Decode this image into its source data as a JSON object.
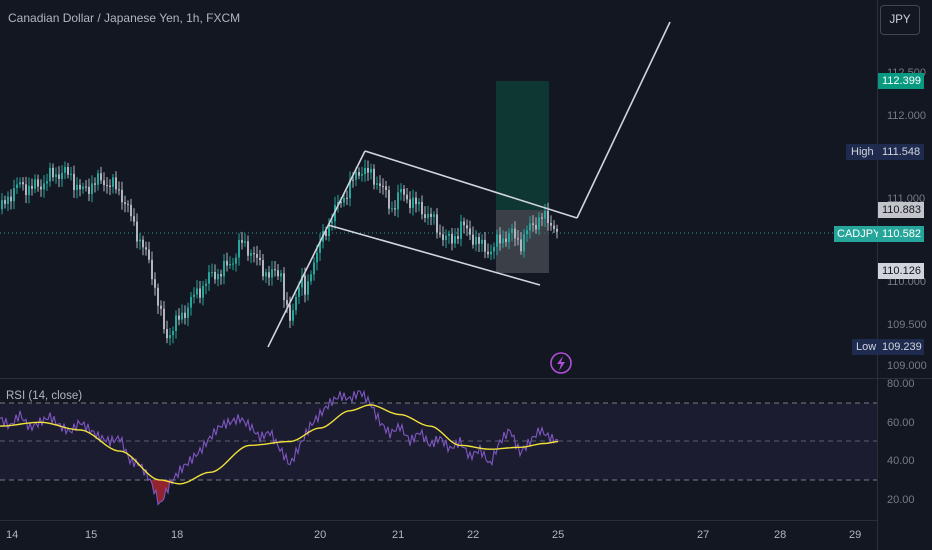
{
  "header": {
    "title": "Canadian Dollar / Japanese Yen, 1h, FXCM",
    "currency_button": "JPY"
  },
  "price_scale": {
    "ticks": [
      "112.500",
      "112.000",
      "111.000",
      "110.000",
      "109.500",
      "109.000"
    ],
    "badges": {
      "target_price": "112.399",
      "high_label": "High",
      "high_value": "111.548",
      "entry_price": "110.883",
      "symbol": "CADJPY",
      "last_price": "110.582",
      "stop_price": "110.126",
      "low_label": "Low",
      "low_value": "109.239"
    }
  },
  "rsi_panel": {
    "title": "RSI (14, close)",
    "ticks": [
      "80.00",
      "60.00",
      "40.00",
      "20.00"
    ]
  },
  "time_axis": {
    "labels": [
      "14",
      "15",
      "18",
      "20",
      "21",
      "22",
      "25",
      "27",
      "28",
      "29"
    ]
  },
  "colors": {
    "background": "#131722",
    "up_candle": "#26a69a",
    "down_candle": "#b2b5be",
    "rsi_line": "#7e57c2",
    "rsi_ma": "#f0e13b",
    "target_badge": "#089981",
    "last_badge": "#26a69a",
    "extreme_badge": "#1e2b4f"
  },
  "chart_data": {
    "type": "candlestick",
    "title": "Canadian Dollar / Japanese Yen, 1h, FXCM",
    "price_range": [
      108.9,
      112.75
    ],
    "x_labels": [
      "14",
      "15",
      "18",
      "20",
      "21",
      "22",
      "25",
      "27",
      "28",
      "29"
    ],
    "close_path": [
      [
        0,
        110.9
      ],
      [
        10,
        111.1
      ],
      [
        20,
        111.2
      ],
      [
        30,
        111.15
      ],
      [
        40,
        111.2
      ],
      [
        50,
        111.3
      ],
      [
        60,
        111.35
      ],
      [
        70,
        111.3
      ],
      [
        80,
        111.1
      ],
      [
        90,
        111.2
      ],
      [
        100,
        111.25
      ],
      [
        110,
        111.2
      ],
      [
        120,
        111.1
      ],
      [
        130,
        110.8
      ],
      [
        140,
        110.5
      ],
      [
        150,
        110.2
      ],
      [
        155,
        109.9
      ],
      [
        160,
        109.6
      ],
      [
        165,
        109.35
      ],
      [
        170,
        109.45
      ],
      [
        180,
        109.6
      ],
      [
        190,
        109.8
      ],
      [
        200,
        109.95
      ],
      [
        210,
        110.1
      ],
      [
        220,
        110.15
      ],
      [
        230,
        110.25
      ],
      [
        240,
        110.5
      ],
      [
        250,
        110.4
      ],
      [
        260,
        110.2
      ],
      [
        270,
        110.1
      ],
      [
        280,
        110.15
      ],
      [
        285,
        109.7
      ],
      [
        290,
        109.5
      ],
      [
        295,
        109.9
      ],
      [
        300,
        110.1
      ],
      [
        305,
        109.8
      ],
      [
        310,
        110.2
      ],
      [
        320,
        110.5
      ],
      [
        330,
        110.8
      ],
      [
        340,
        111.0
      ],
      [
        350,
        111.2
      ],
      [
        360,
        111.4
      ],
      [
        370,
        111.3
      ],
      [
        380,
        111.2
      ],
      [
        390,
        110.9
      ],
      [
        400,
        111.1
      ],
      [
        410,
        111.0
      ],
      [
        420,
        110.9
      ],
      [
        430,
        110.8
      ],
      [
        440,
        110.6
      ],
      [
        450,
        110.5
      ],
      [
        460,
        110.7
      ],
      [
        470,
        110.6
      ],
      [
        480,
        110.45
      ],
      [
        490,
        110.4
      ],
      [
        500,
        110.55
      ],
      [
        510,
        110.6
      ],
      [
        520,
        110.5
      ],
      [
        530,
        110.7
      ],
      [
        540,
        110.8
      ],
      [
        550,
        110.75
      ],
      [
        558,
        110.6
      ]
    ],
    "annotations": {
      "rising_trendline": [
        [
          268,
          109.08
        ],
        [
          365,
          111.48
        ]
      ],
      "channel_upper": [
        [
          365,
          111.48
        ],
        [
          577,
          110.82
        ]
      ],
      "channel_lower": [
        [
          328,
          110.72
        ],
        [
          540,
          110.05
        ]
      ],
      "projection": [
        [
          577,
          110.82
        ],
        [
          670,
          112.65
        ]
      ],
      "target_zone": [
        496,
        549,
        110.95,
        112.399
      ],
      "risk_zone": [
        496,
        549,
        110.126,
        110.95
      ]
    },
    "rsi": {
      "name": "RSI (14, close)",
      "ylim": [
        10,
        85
      ],
      "bands": [
        70,
        50,
        30
      ],
      "values": [
        [
          0,
          62
        ],
        [
          10,
          58
        ],
        [
          20,
          64
        ],
        [
          30,
          57
        ],
        [
          40,
          60
        ],
        [
          50,
          63
        ],
        [
          60,
          58
        ],
        [
          70,
          55
        ],
        [
          80,
          60
        ],
        [
          90,
          56
        ],
        [
          100,
          52
        ],
        [
          110,
          50
        ],
        [
          120,
          52
        ],
        [
          130,
          40
        ],
        [
          140,
          38
        ],
        [
          150,
          30
        ],
        [
          160,
          17
        ],
        [
          170,
          28
        ],
        [
          180,
          35
        ],
        [
          190,
          40
        ],
        [
          200,
          45
        ],
        [
          210,
          52
        ],
        [
          220,
          58
        ],
        [
          230,
          60
        ],
        [
          240,
          62
        ],
        [
          250,
          58
        ],
        [
          260,
          52
        ],
        [
          270,
          55
        ],
        [
          280,
          46
        ],
        [
          290,
          38
        ],
        [
          300,
          48
        ],
        [
          310,
          58
        ],
        [
          320,
          64
        ],
        [
          330,
          70
        ],
        [
          340,
          74
        ],
        [
          350,
          72
        ],
        [
          360,
          76
        ],
        [
          370,
          70
        ],
        [
          380,
          60
        ],
        [
          390,
          54
        ],
        [
          400,
          58
        ],
        [
          410,
          50
        ],
        [
          420,
          55
        ],
        [
          430,
          48
        ],
        [
          440,
          52
        ],
        [
          450,
          46
        ],
        [
          460,
          50
        ],
        [
          470,
          42
        ],
        [
          480,
          46
        ],
        [
          490,
          38
        ],
        [
          500,
          50
        ],
        [
          510,
          56
        ],
        [
          520,
          44
        ],
        [
          530,
          50
        ],
        [
          540,
          56
        ],
        [
          550,
          52
        ],
        [
          558,
          50
        ]
      ],
      "ma": [
        [
          0,
          58
        ],
        [
          40,
          60
        ],
        [
          80,
          56
        ],
        [
          120,
          45
        ],
        [
          160,
          30
        ],
        [
          180,
          28
        ],
        [
          210,
          34
        ],
        [
          250,
          48
        ],
        [
          290,
          50
        ],
        [
          320,
          57
        ],
        [
          350,
          66
        ],
        [
          370,
          69
        ],
        [
          400,
          64
        ],
        [
          430,
          58
        ],
        [
          460,
          48
        ],
        [
          490,
          46
        ],
        [
          520,
          47
        ],
        [
          545,
          49
        ],
        [
          558,
          50
        ]
      ]
    }
  }
}
